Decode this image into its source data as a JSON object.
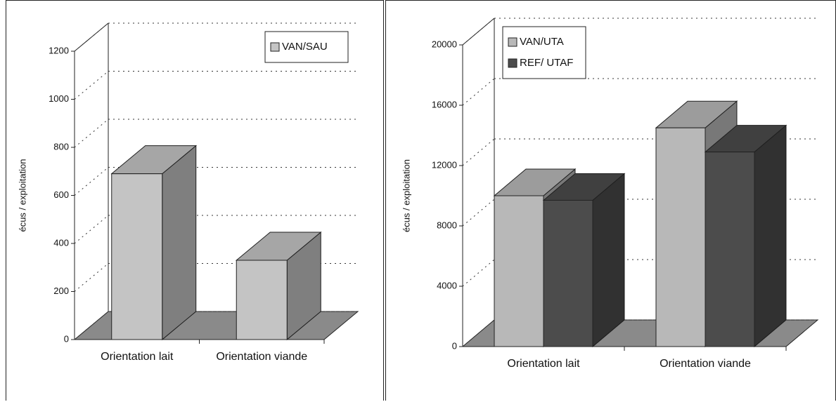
{
  "chart_data": [
    {
      "type": "bar",
      "ylabel": "écus / exploitation",
      "categories": [
        "Orientation lait",
        "Orientation viande"
      ],
      "series": [
        {
          "name": "VAN/SAU",
          "color": "#c4c4c4",
          "values": [
            690,
            330
          ]
        }
      ],
      "ylim": [
        0,
        1200
      ],
      "yticks": [
        0,
        200,
        400,
        600,
        800,
        1000,
        1200
      ],
      "grid": true,
      "legend": "upper right"
    },
    {
      "type": "bar",
      "ylabel": "écus / exploitation",
      "categories": [
        "Orientation lait",
        "Orientation viande"
      ],
      "series": [
        {
          "name": "VAN/UTA",
          "color": "#b8b8b8",
          "values": [
            10000,
            14500
          ]
        },
        {
          "name": "REF/ UTAF",
          "color": "#4c4c4c",
          "values": [
            9700,
            12900
          ]
        }
      ],
      "ylim": [
        0,
        20000
      ],
      "yticks": [
        0,
        4000,
        8000,
        12000,
        16000,
        20000
      ],
      "grid": true,
      "legend": "upper left"
    }
  ]
}
